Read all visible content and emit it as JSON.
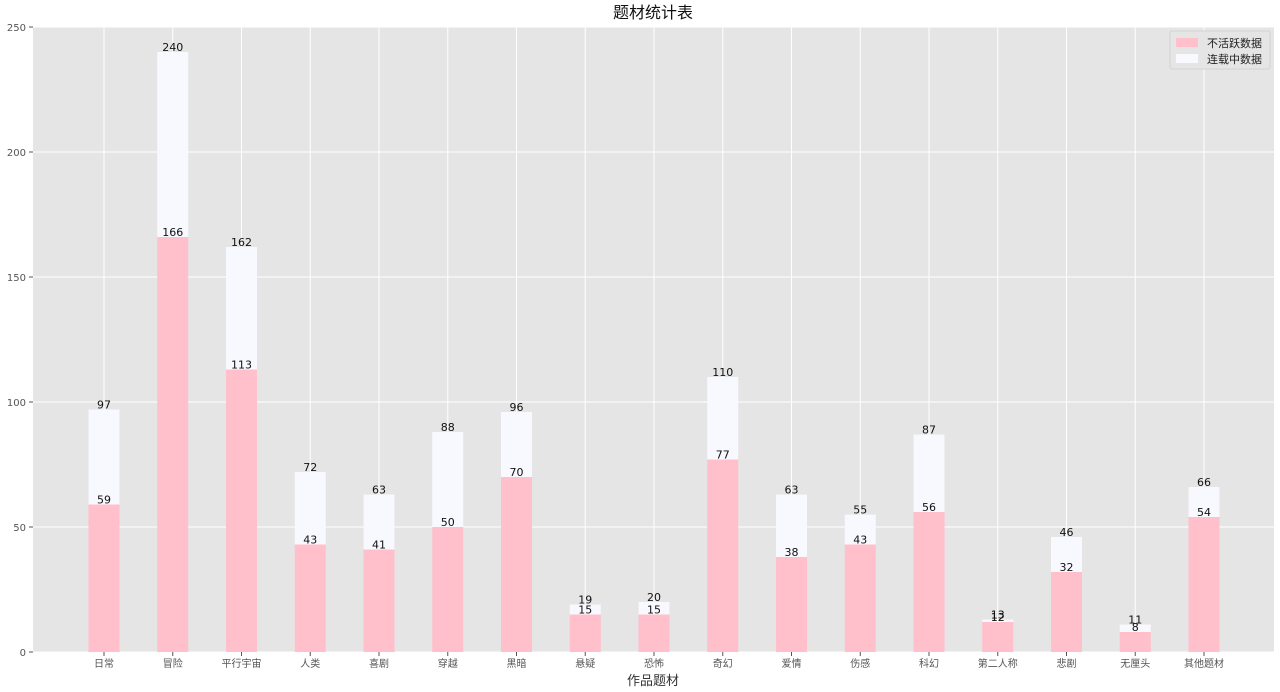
{
  "chart_data": {
    "type": "bar",
    "stacked": true,
    "title": "题材统计表",
    "xlabel": "作品题材",
    "ylabel": "",
    "ylim": [
      0,
      250
    ],
    "yticks": [
      0,
      50,
      100,
      150,
      200,
      250
    ],
    "categories": [
      "日常",
      "冒险",
      "平行宇宙",
      "人类",
      "喜剧",
      "穿越",
      "黑暗",
      "悬疑",
      "恐怖",
      "奇幻",
      "爱情",
      "伤感",
      "科幻",
      "第二人称",
      "悲剧",
      "无厘头",
      "其他题材"
    ],
    "series": [
      {
        "name": "不活跃数据",
        "values": [
          59,
          166,
          113,
          43,
          41,
          50,
          70,
          15,
          15,
          77,
          38,
          43,
          56,
          12,
          32,
          8,
          54
        ]
      },
      {
        "name": "连载中数据",
        "values": [
          38,
          74,
          49,
          29,
          22,
          38,
          26,
          4,
          5,
          33,
          25,
          12,
          31,
          1,
          14,
          3,
          12
        ]
      }
    ],
    "totals": [
      97,
      240,
      162,
      72,
      63,
      88,
      96,
      19,
      20,
      110,
      63,
      55,
      87,
      13,
      46,
      11,
      66
    ],
    "grid": true,
    "legend_position": "top-right",
    "colors": {
      "series1": "#ffc0cb",
      "series2": "#f8f8ff",
      "plot_background": "#e5e5e5",
      "grid": "#ffffff"
    }
  }
}
